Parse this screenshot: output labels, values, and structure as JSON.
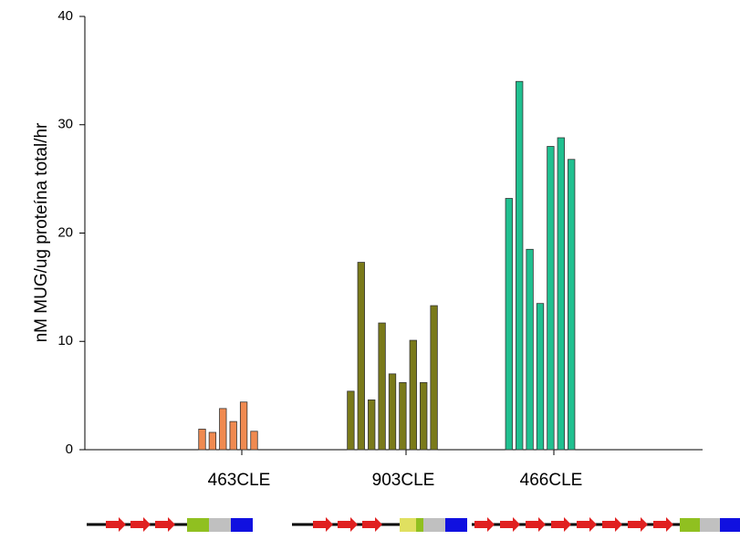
{
  "chart_data": {
    "type": "grouped-bar",
    "y_label": "nM MUG/ug proteína total/hr",
    "ylim": [
      0,
      40
    ],
    "yticks": [
      0,
      10,
      20,
      30,
      40
    ],
    "groups": [
      {
        "label": "463CLE",
        "color": "#f08a50",
        "values": [
          1.9,
          1.6,
          3.8,
          2.6,
          4.4,
          1.7
        ]
      },
      {
        "label": "903CLE",
        "color": "#7a7a1a",
        "values": [
          5.4,
          17.3,
          4.6,
          11.7,
          7.0,
          6.2,
          10.1,
          6.2,
          13.3
        ]
      },
      {
        "label": "466CLE",
        "color": "#20c090",
        "values": [
          23.2,
          34.0,
          18.5,
          13.5,
          28.0,
          28.8,
          26.8
        ]
      }
    ]
  }
}
